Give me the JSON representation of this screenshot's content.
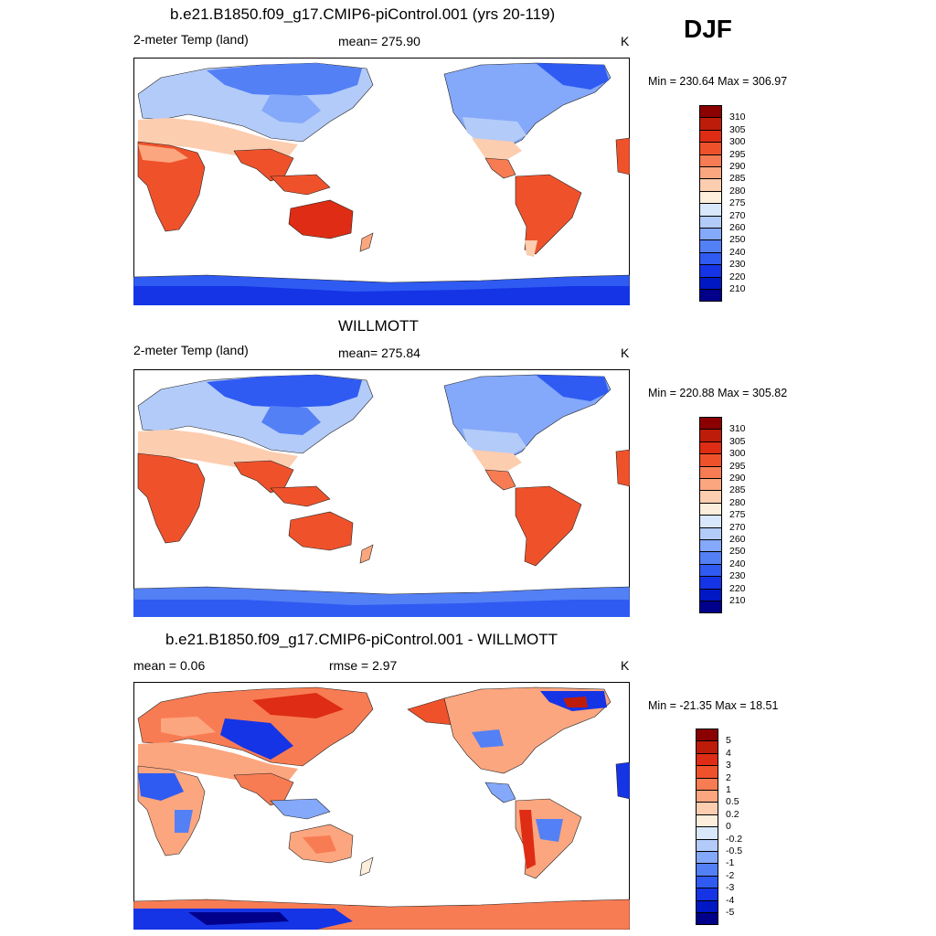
{
  "season": "DJF",
  "colors": {
    "abs": [
      "#00008b",
      "#0018c4",
      "#1534e6",
      "#2f5bf2",
      "#5480f6",
      "#84a8fa",
      "#b3cbf8",
      "#d9e7fb",
      "#fdeedc",
      "#fdcdb0",
      "#fca67f",
      "#f87c53",
      "#ef522b",
      "#de2d14",
      "#bd1c0b",
      "#8b0000"
    ],
    "diff": [
      "#00008b",
      "#0018c4",
      "#1534e6",
      "#2f5bf2",
      "#5480f6",
      "#84a8fa",
      "#b3cbf8",
      "#d9e7fb",
      "#fdeedc",
      "#fdcdb0",
      "#fca67f",
      "#f87c53",
      "#ef522b",
      "#de2d14",
      "#bd1c0b",
      "#8b0000"
    ]
  },
  "panels": [
    {
      "title": "b.e21.B1850.f09_g17.CMIP6-piControl.001 (yrs 20-119)",
      "left": "2-meter Temp (land)",
      "center": "mean= 275.90",
      "right": "K",
      "minmax": "Min = 230.64 Max = 306.97",
      "colorbar": [
        "310",
        "305",
        "300",
        "295",
        "290",
        "285",
        "280",
        "275",
        "270",
        "260",
        "250",
        "240",
        "230",
        "220",
        "210"
      ]
    },
    {
      "title": "WILLMOTT",
      "left": "2-meter Temp (land)",
      "center": "mean= 275.84",
      "right": "K",
      "minmax": "Min = 220.88 Max = 305.82",
      "colorbar": [
        "310",
        "305",
        "300",
        "295",
        "290",
        "285",
        "280",
        "275",
        "270",
        "260",
        "250",
        "240",
        "230",
        "220",
        "210"
      ]
    },
    {
      "title": "b.e21.B1850.f09_g17.CMIP6-piControl.001 - WILLMOTT",
      "left": "mean =   0.06",
      "center": "rmse =   2.97",
      "right": "K",
      "minmax": "Min = -21.35 Max =  18.51",
      "colorbar": [
        "5",
        "4",
        "3",
        "2",
        "1",
        "0.5",
        "0.2",
        "0",
        "-0.2",
        "-0.5",
        "-1",
        "-2",
        "-3",
        "-4",
        "-5"
      ]
    }
  ]
}
